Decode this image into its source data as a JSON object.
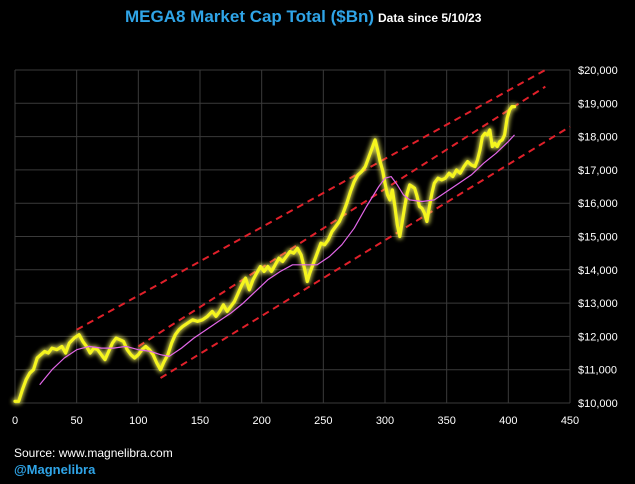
{
  "header": {
    "title": "MEGA8 Market Cap Total ($Bn)",
    "subtitle": "Data since 5/10/23"
  },
  "footer": {
    "source": "Source: www.magnelibra.com",
    "handle": "@Magnelibra"
  },
  "colors": {
    "background": "#000000",
    "grid": "#3a3a3a",
    "price_line": "#f5f51e",
    "price_glow": "#ffff66",
    "moving_average": "#e266e8",
    "channel": "#e0202a",
    "title": "#2fa4e7"
  },
  "chart_data": {
    "type": "line",
    "title": "MEGA8 Market Cap Total ($Bn)",
    "xlim": [
      0,
      450
    ],
    "ylim": [
      10000,
      20000
    ],
    "x_ticks": [
      "0",
      "50",
      "100",
      "150",
      "200",
      "250",
      "300",
      "350",
      "400",
      "450"
    ],
    "x_tick_values": [
      0,
      50,
      100,
      150,
      200,
      250,
      300,
      350,
      400,
      450
    ],
    "y_ticks": [
      "$10,000",
      "$11,000",
      "$12,000",
      "$13,000",
      "$14,000",
      "$15,000",
      "$16,000",
      "$17,000",
      "$18,000",
      "$19,000",
      "$20,000"
    ],
    "y_tick_values": [
      10000,
      11000,
      12000,
      13000,
      14000,
      15000,
      16000,
      17000,
      18000,
      19000,
      20000
    ],
    "y_axis_position": "right",
    "grid": true,
    "series": [
      {
        "kind": "price",
        "points": [
          [
            0,
            10050
          ],
          [
            3,
            10050
          ],
          [
            6,
            10400
          ],
          [
            9,
            10700
          ],
          [
            12,
            10900
          ],
          [
            15,
            11000
          ],
          [
            18,
            11350
          ],
          [
            21,
            11450
          ],
          [
            24,
            11550
          ],
          [
            27,
            11500
          ],
          [
            30,
            11650
          ],
          [
            34,
            11600
          ],
          [
            38,
            11700
          ],
          [
            41,
            11500
          ],
          [
            44,
            11800
          ],
          [
            48,
            11950
          ],
          [
            52,
            12050
          ],
          [
            55,
            11850
          ],
          [
            58,
            11700
          ],
          [
            61,
            11500
          ],
          [
            64,
            11650
          ],
          [
            67,
            11600
          ],
          [
            70,
            11450
          ],
          [
            73,
            11300
          ],
          [
            76,
            11550
          ],
          [
            79,
            11800
          ],
          [
            82,
            11950
          ],
          [
            85,
            11900
          ],
          [
            88,
            11850
          ],
          [
            91,
            11600
          ],
          [
            94,
            11450
          ],
          [
            97,
            11350
          ],
          [
            100,
            11450
          ],
          [
            103,
            11600
          ],
          [
            106,
            11700
          ],
          [
            109,
            11600
          ],
          [
            112,
            11450
          ],
          [
            115,
            11200
          ],
          [
            118,
            11000
          ],
          [
            121,
            11250
          ],
          [
            124,
            11450
          ],
          [
            127,
            11800
          ],
          [
            130,
            12050
          ],
          [
            133,
            12200
          ],
          [
            136,
            12300
          ],
          [
            140,
            12400
          ],
          [
            144,
            12500
          ],
          [
            148,
            12450
          ],
          [
            152,
            12500
          ],
          [
            156,
            12600
          ],
          [
            160,
            12750
          ],
          [
            163,
            12600
          ],
          [
            166,
            12750
          ],
          [
            169,
            12950
          ],
          [
            172,
            12750
          ],
          [
            175,
            12900
          ],
          [
            178,
            13050
          ],
          [
            181,
            13300
          ],
          [
            184,
            13550
          ],
          [
            187,
            13750
          ],
          [
            190,
            13400
          ],
          [
            193,
            13700
          ],
          [
            196,
            13900
          ],
          [
            199,
            14100
          ],
          [
            202,
            13950
          ],
          [
            205,
            14100
          ],
          [
            208,
            13950
          ],
          [
            211,
            14150
          ],
          [
            214,
            14350
          ],
          [
            217,
            14250
          ],
          [
            220,
            14400
          ],
          [
            223,
            14550
          ],
          [
            226,
            14500
          ],
          [
            229,
            14650
          ],
          [
            232,
            14450
          ],
          [
            235,
            14000
          ],
          [
            237,
            13650
          ],
          [
            239,
            13900
          ],
          [
            242,
            14200
          ],
          [
            245,
            14500
          ],
          [
            248,
            14800
          ],
          [
            251,
            14750
          ],
          [
            254,
            14900
          ],
          [
            257,
            15150
          ],
          [
            260,
            15300
          ],
          [
            263,
            15450
          ],
          [
            266,
            15700
          ],
          [
            269,
            16000
          ],
          [
            272,
            16350
          ],
          [
            275,
            16650
          ],
          [
            278,
            16850
          ],
          [
            281,
            16950
          ],
          [
            284,
            17100
          ],
          [
            287,
            17400
          ],
          [
            290,
            17700
          ],
          [
            292,
            17900
          ],
          [
            294,
            17600
          ],
          [
            296,
            17250
          ],
          [
            298,
            17000
          ],
          [
            300,
            16600
          ],
          [
            302,
            16250
          ],
          [
            304,
            16100
          ],
          [
            306,
            16400
          ],
          [
            308,
            15900
          ],
          [
            310,
            15350
          ],
          [
            312,
            15000
          ],
          [
            314,
            15450
          ],
          [
            316,
            15900
          ],
          [
            318,
            16300
          ],
          [
            320,
            16550
          ],
          [
            322,
            16500
          ],
          [
            324,
            16450
          ],
          [
            326,
            16200
          ],
          [
            328,
            15900
          ],
          [
            330,
            15850
          ],
          [
            332,
            15700
          ],
          [
            334,
            15450
          ],
          [
            336,
            15900
          ],
          [
            338,
            16300
          ],
          [
            340,
            16600
          ],
          [
            343,
            16750
          ],
          [
            346,
            16700
          ],
          [
            349,
            16750
          ],
          [
            352,
            16900
          ],
          [
            355,
            16800
          ],
          [
            358,
            17000
          ],
          [
            361,
            16900
          ],
          [
            364,
            17100
          ],
          [
            367,
            17250
          ],
          [
            370,
            17150
          ],
          [
            373,
            17100
          ],
          [
            375,
            17300
          ],
          [
            377,
            17600
          ],
          [
            379,
            18000
          ],
          [
            381,
            18100
          ],
          [
            383,
            18050
          ],
          [
            385,
            18200
          ],
          [
            387,
            17700
          ],
          [
            389,
            17800
          ],
          [
            391,
            17700
          ],
          [
            393,
            17850
          ],
          [
            395,
            17900
          ],
          [
            397,
            18050
          ],
          [
            399,
            18550
          ],
          [
            401,
            18800
          ],
          [
            403,
            18900
          ],
          [
            405,
            18900
          ]
        ]
      },
      {
        "kind": "moving_average",
        "points": [
          [
            20,
            10550
          ],
          [
            30,
            11000
          ],
          [
            40,
            11350
          ],
          [
            50,
            11600
          ],
          [
            60,
            11700
          ],
          [
            70,
            11650
          ],
          [
            80,
            11650
          ],
          [
            90,
            11700
          ],
          [
            100,
            11600
          ],
          [
            110,
            11550
          ],
          [
            118,
            11450
          ],
          [
            125,
            11400
          ],
          [
            135,
            11650
          ],
          [
            145,
            11950
          ],
          [
            155,
            12200
          ],
          [
            165,
            12450
          ],
          [
            175,
            12700
          ],
          [
            185,
            13000
          ],
          [
            195,
            13350
          ],
          [
            205,
            13700
          ],
          [
            215,
            13950
          ],
          [
            225,
            14150
          ],
          [
            235,
            14150
          ],
          [
            245,
            14150
          ],
          [
            255,
            14400
          ],
          [
            265,
            14750
          ],
          [
            275,
            15250
          ],
          [
            285,
            15900
          ],
          [
            295,
            16500
          ],
          [
            300,
            16750
          ],
          [
            305,
            16800
          ],
          [
            310,
            16550
          ],
          [
            315,
            16250
          ],
          [
            320,
            16100
          ],
          [
            330,
            16050
          ],
          [
            340,
            16100
          ],
          [
            350,
            16350
          ],
          [
            360,
            16600
          ],
          [
            370,
            16850
          ],
          [
            380,
            17200
          ],
          [
            390,
            17500
          ],
          [
            400,
            17850
          ],
          [
            405,
            18050
          ]
        ]
      }
    ],
    "trend_channel": {
      "style": "dashed",
      "lines": [
        {
          "name": "upper",
          "points": [
            [
              50,
              12200
            ],
            [
              430,
              20000
            ]
          ]
        },
        {
          "name": "middle",
          "points": [
            [
              100,
              11700
            ],
            [
              430,
              19500
            ]
          ]
        },
        {
          "name": "lower",
          "points": [
            [
              118,
              10750
            ],
            [
              450,
              18300
            ]
          ]
        }
      ]
    }
  }
}
